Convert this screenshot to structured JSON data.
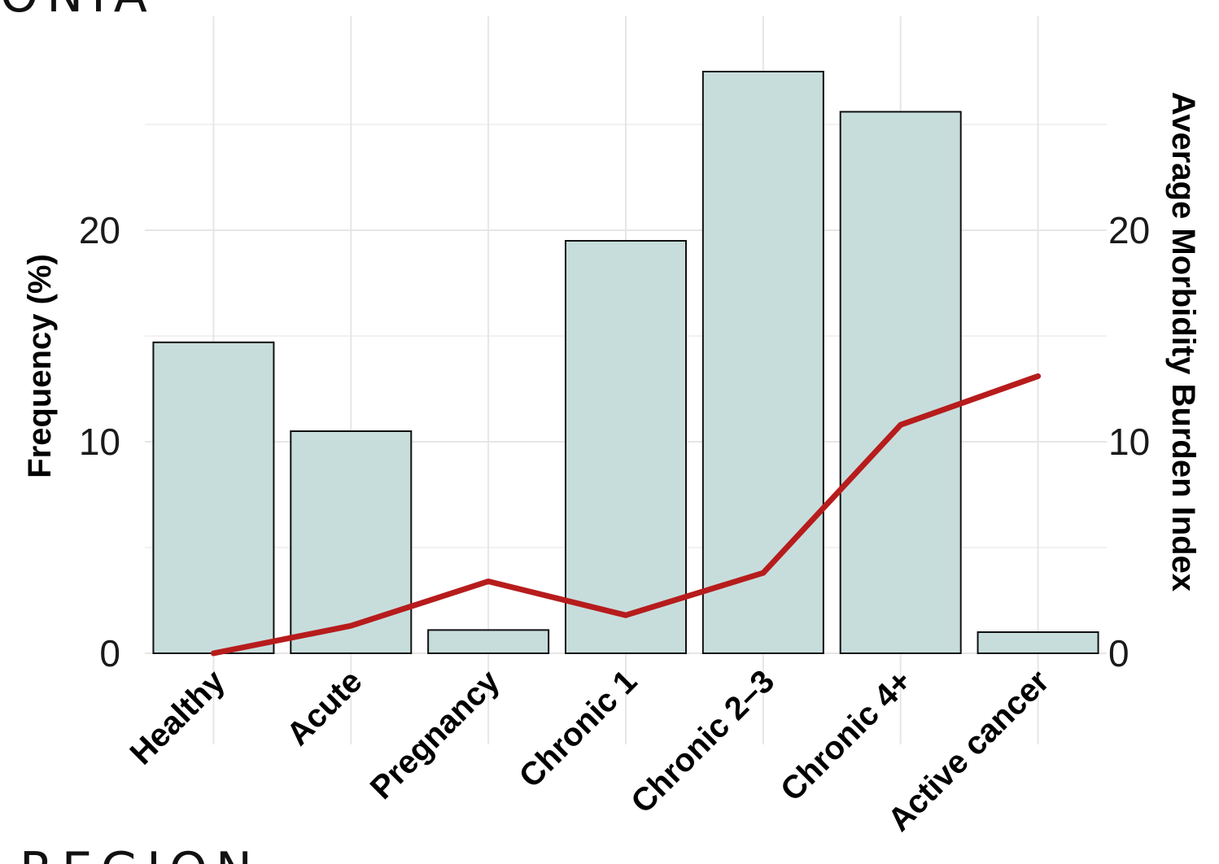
{
  "header_fragment": "ONIA",
  "footer_fragment": "REGION",
  "chart_data": {
    "type": "bar",
    "categories": [
      "Healthy",
      "Acute",
      "Pregnancy",
      "Chronic 1",
      "Chronic 2–3",
      "Chronic 4+",
      "Active cancer"
    ],
    "series": [
      {
        "type": "bar",
        "axis": "left",
        "values": [
          14.7,
          10.5,
          1.1,
          19.5,
          27.5,
          25.6,
          1.0
        ],
        "color": "#c7dddc"
      },
      {
        "type": "line",
        "axis": "right",
        "values": [
          0.0,
          1.3,
          3.4,
          1.8,
          3.8,
          10.8,
          13.1
        ],
        "color": "#b71c1c"
      }
    ],
    "ylabel": "Frequency (%)",
    "y2label": "Average Morbidity Burden Index",
    "ylim": [
      0,
      30
    ],
    "y2lim": [
      0,
      30
    ],
    "yticks": [
      "0",
      "10",
      "20"
    ],
    "y2ticks": [
      "0",
      "10",
      "20"
    ],
    "grid": true,
    "legend": "none"
  }
}
